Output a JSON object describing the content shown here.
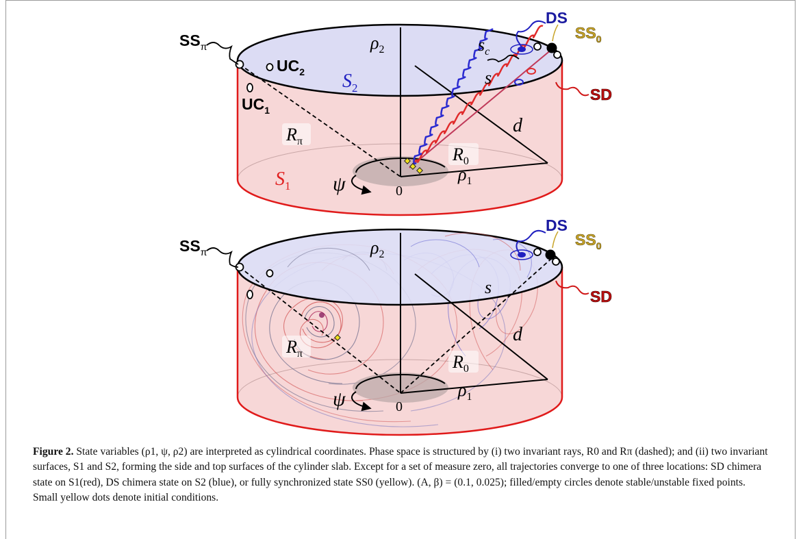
{
  "labels": {
    "ss_pi": "SS",
    "ss_pi_sub": "π",
    "uc2": "UC",
    "uc2_sub": "2",
    "uc1": "UC",
    "uc1_sub": "1",
    "ds": "DS",
    "ss0": "SS",
    "ss0_sub": "0",
    "sd": "SD",
    "rho2": "ρ",
    "rho2_sub": "2",
    "rho1": "ρ",
    "rho1_sub": "1",
    "sc": "s",
    "sc_sub": "c",
    "s": "s",
    "S2": "S",
    "S2_sub": "2",
    "S1": "S",
    "S1_sub": "1",
    "R_pi": "R",
    "R_pi_sub": "π",
    "R_0": "R",
    "R_0_sub": "0",
    "d": "d",
    "psi": "ψ",
    "zero": "0"
  },
  "caption": {
    "figure_label": "Figure 2.",
    "text": " State variables (ρ1, ψ, ρ2) are interpreted as cylindrical coordinates. Phase space is structured by (i) two invariant rays, R0 and Rπ (dashed); and (ii) two invariant surfaces, S1 and S2, forming the side and top surfaces of the cylinder slab. Except for a set of measure zero, all trajectories converge to one of three locations: SD chimera state on S1(red), DS chimera state on S2 (blue), or fully synchronized state SS0 (yellow). (A, β) = (0.1, 0.025); filled/empty circles denote stable/unstable fixed points. Small yellow dots denote initial conditions."
  },
  "colors": {
    "side_fill": "#f4c9c9",
    "top_fill": "#dcdcf4",
    "red": "#d01818",
    "blue": "#2020c0",
    "yellow": "#f0e020",
    "ds_label": "#1a1aa0",
    "ss0_label": "#c8a428",
    "sd_label": "#c01010"
  }
}
